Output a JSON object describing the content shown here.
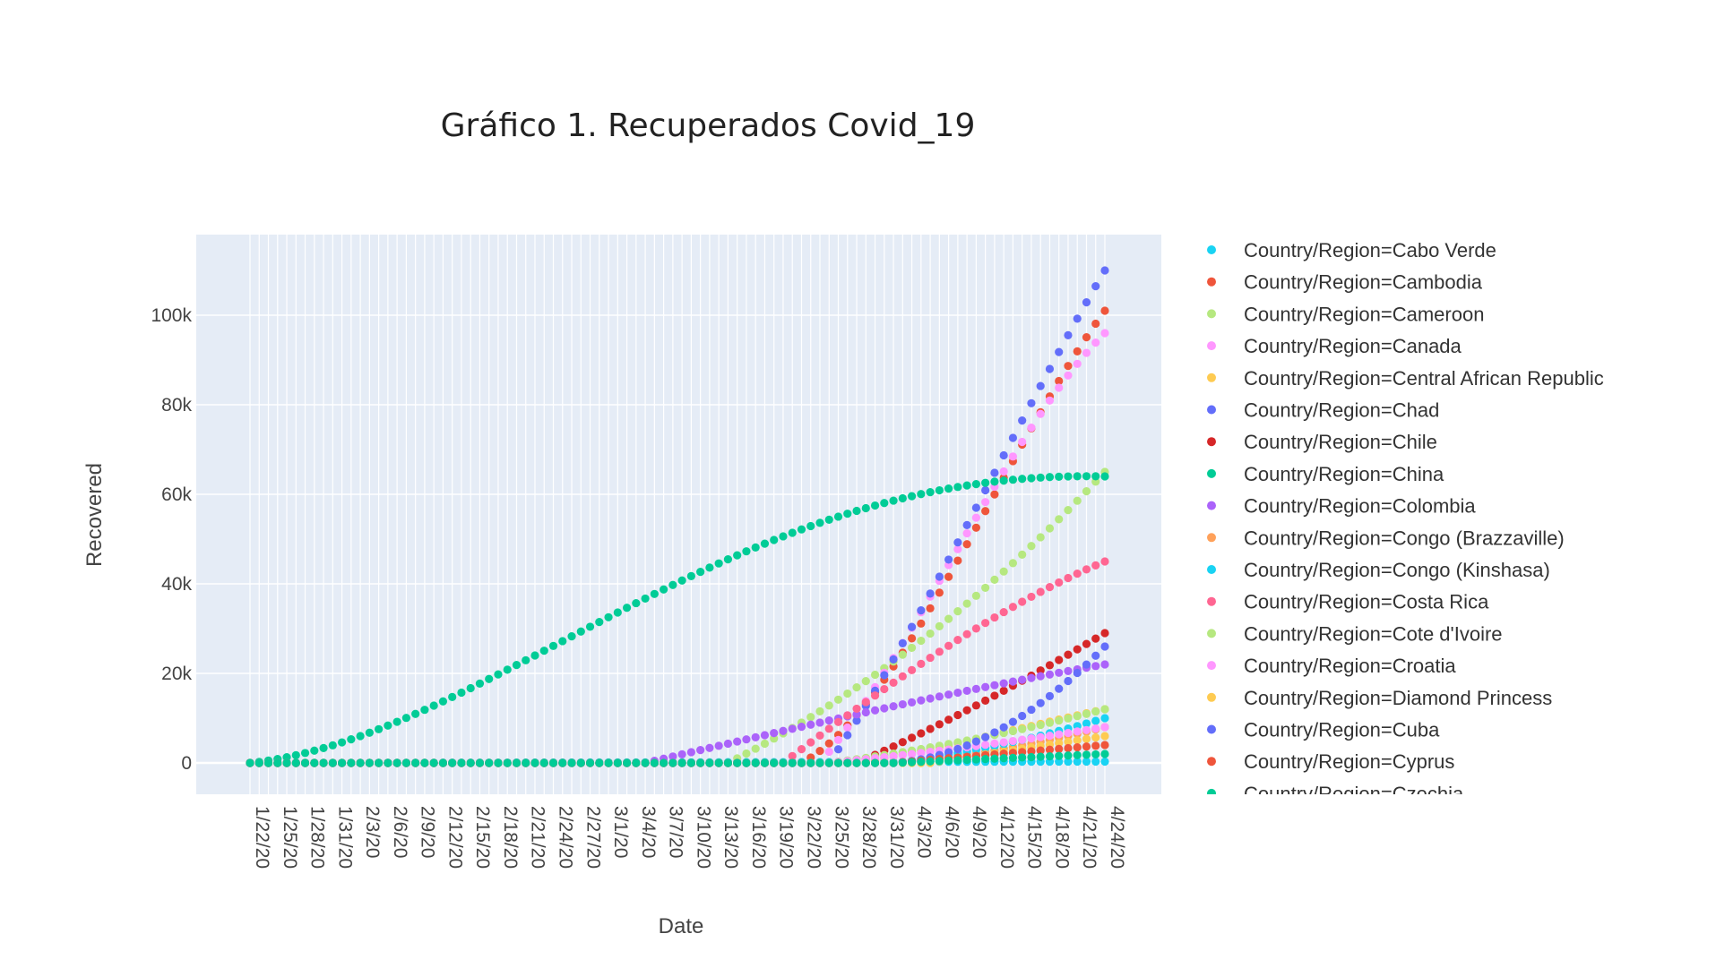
{
  "chart_data": {
    "type": "scatter",
    "title": "Gráfico 1. Recuperados Covid_19",
    "xlabel": "Date",
    "ylabel": "Recovered",
    "ylim": [
      -7000,
      118000
    ],
    "y_ticks": [
      0,
      20000,
      40000,
      60000,
      80000,
      100000
    ],
    "y_tick_labels": [
      "0",
      "20k",
      "40k",
      "60k",
      "80k",
      "100k"
    ],
    "x_start": "2020-01-22",
    "x_end": "2020-04-25",
    "x_tick_labels": [
      "1/22/20",
      "1/25/20",
      "1/28/20",
      "1/31/20",
      "2/3/20",
      "2/6/20",
      "2/9/20",
      "2/12/20",
      "2/15/20",
      "2/18/20",
      "2/21/20",
      "2/24/20",
      "2/27/20",
      "3/1/20",
      "3/4/20",
      "3/7/20",
      "3/10/20",
      "3/13/20",
      "3/16/20",
      "3/19/20",
      "3/22/20",
      "3/25/20",
      "3/28/20",
      "3/31/20",
      "4/3/20",
      "4/6/20",
      "4/9/20",
      "4/12/20",
      "4/15/20",
      "4/18/20",
      "4/21/20",
      "4/24/20"
    ],
    "grid": true,
    "legend_position": "right",
    "series": [
      {
        "name": "Country/Region=Cabo Verde",
        "color": "#19d3f3",
        "curve": "flat",
        "final": 300
      },
      {
        "name": "Country/Region=Cambodia",
        "color": "#ef553b",
        "curve": "bezier",
        "start": "2020-03-22",
        "points": [
          [
            0,
            0
          ],
          [
            0.6,
            12000
          ],
          [
            0.85,
            70000
          ],
          [
            1,
            101000
          ]
        ]
      },
      {
        "name": "Country/Region=Cameroon",
        "color": "#b6e880",
        "curve": "bezier",
        "start": "2020-03-14",
        "points": [
          [
            0,
            0
          ],
          [
            0.5,
            14000
          ],
          [
            0.8,
            35000
          ],
          [
            1,
            65000
          ]
        ]
      },
      {
        "name": "Country/Region=Canada",
        "color": "#ff97ff",
        "curve": "bezier",
        "start": "2020-03-24",
        "points": [
          [
            0,
            0
          ],
          [
            0.55,
            25000
          ],
          [
            0.85,
            75000
          ],
          [
            1,
            96000
          ]
        ]
      },
      {
        "name": "Country/Region=Central African Republic",
        "color": "#fecb52",
        "curve": "bezier",
        "start": "2020-03-28",
        "points": [
          [
            0,
            0
          ],
          [
            0.5,
            3000
          ],
          [
            0.8,
            8000
          ],
          [
            1,
            12000
          ]
        ]
      },
      {
        "name": "Country/Region=Chad",
        "color": "#636efa",
        "curve": "bezier",
        "start": "2020-03-25",
        "points": [
          [
            0,
            0
          ],
          [
            0.5,
            30000
          ],
          [
            0.8,
            75000
          ],
          [
            1,
            110000
          ]
        ]
      },
      {
        "name": "Country/Region=Chile",
        "color": "#d62728",
        "curve": "bezier",
        "start": "2020-03-28",
        "points": [
          [
            0,
            0
          ],
          [
            0.5,
            8000
          ],
          [
            0.8,
            18000
          ],
          [
            1,
            29000
          ]
        ]
      },
      {
        "name": "Country/Region=China",
        "color": "#00cc96",
        "curve": "bezier",
        "start": "2020-01-22",
        "points": [
          [
            0,
            0
          ],
          [
            0.2,
            5000
          ],
          [
            0.35,
            50000
          ],
          [
            0.55,
            65000
          ],
          [
            1,
            64000
          ]
        ]
      },
      {
        "name": "Country/Region=Colombia",
        "color": "#ab63fa",
        "curve": "bezier",
        "start": "2020-03-05",
        "points": [
          [
            0,
            0
          ],
          [
            0.35,
            8000
          ],
          [
            0.75,
            16000
          ],
          [
            1,
            22000
          ]
        ]
      },
      {
        "name": "Country/Region=Congo (Brazzaville)",
        "color": "#ffa15a",
        "curve": "bezier",
        "start": "2020-04-01",
        "points": [
          [
            0,
            0
          ],
          [
            0.6,
            2000
          ],
          [
            1,
            8000
          ]
        ]
      },
      {
        "name": "Country/Region=Congo (Kinshasa)",
        "color": "#19d3f3",
        "curve": "bezier",
        "start": "2020-04-01",
        "points": [
          [
            0,
            0
          ],
          [
            0.7,
            3000
          ],
          [
            1,
            10000
          ]
        ]
      },
      {
        "name": "Country/Region=Costa Rica",
        "color": "#ff6692",
        "curve": "bezier",
        "start": "2020-03-20",
        "points": [
          [
            0,
            0
          ],
          [
            0.6,
            18000
          ],
          [
            0.85,
            35000
          ],
          [
            1,
            45000
          ]
        ]
      },
      {
        "name": "Country/Region=Cote d'Ivoire",
        "color": "#b6e880",
        "curve": "bezier",
        "start": "2020-03-25",
        "points": [
          [
            0,
            0
          ],
          [
            0.7,
            4000
          ],
          [
            1,
            12000
          ]
        ]
      },
      {
        "name": "Country/Region=Croatia",
        "color": "#ff97ff",
        "curve": "bezier",
        "start": "2020-03-25",
        "points": [
          [
            0,
            0
          ],
          [
            0.6,
            3000
          ],
          [
            1,
            8000
          ]
        ]
      },
      {
        "name": "Country/Region=Diamond Princess",
        "color": "#fecb52",
        "curve": "bezier",
        "start": "2020-04-05",
        "points": [
          [
            0,
            0
          ],
          [
            1,
            6000
          ]
        ]
      },
      {
        "name": "Country/Region=Cuba",
        "color": "#636efa",
        "curve": "bezier",
        "start": "2020-04-01",
        "points": [
          [
            0,
            0
          ],
          [
            0.4,
            1000
          ],
          [
            0.7,
            10000
          ],
          [
            1,
            26000
          ]
        ]
      },
      {
        "name": "Country/Region=Cyprus",
        "color": "#ef553b",
        "curve": "bezier",
        "start": "2020-04-01",
        "points": [
          [
            0,
            0
          ],
          [
            1,
            4000
          ]
        ]
      },
      {
        "name": "Country/Region=Czechia",
        "color": "#00cc96",
        "curve": "bezier",
        "start": "2020-04-01",
        "points": [
          [
            0,
            0
          ],
          [
            1,
            2000
          ]
        ]
      }
    ]
  }
}
